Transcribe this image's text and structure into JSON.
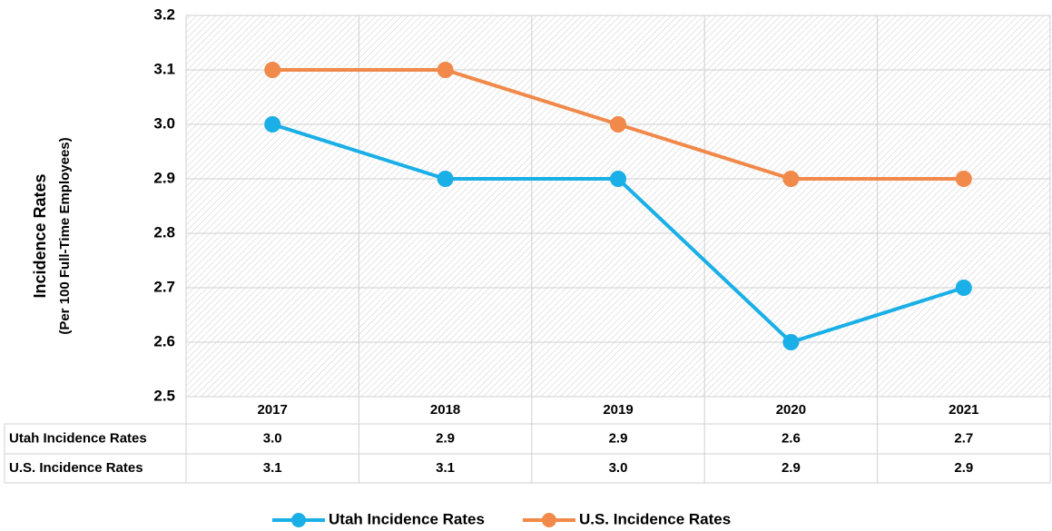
{
  "chart_data": {
    "type": "line",
    "y_label": [
      "Incidence Rates",
      "(Per 100 Full-Time Employees)"
    ],
    "categories": [
      "2017",
      "2018",
      "2019",
      "2020",
      "2021"
    ],
    "series": [
      {
        "name": "Utah Incidence Rates",
        "color": "#1aafe6",
        "values": [
          3.0,
          2.9,
          2.9,
          2.6,
          2.7
        ],
        "value_labels": [
          "3.0",
          "2.9",
          "2.9",
          "2.6",
          "2.7"
        ]
      },
      {
        "name": "U.S. Incidence Rates",
        "color": "#f0894a",
        "values": [
          3.1,
          3.1,
          3.0,
          2.9,
          2.9
        ],
        "value_labels": [
          "3.1",
          "3.1",
          "3.0",
          "2.9",
          "2.9"
        ]
      }
    ],
    "ylim": [
      2.5,
      3.2
    ],
    "yticks": [
      2.5,
      2.6,
      2.7,
      2.8,
      2.9,
      {
        "value": 3.0,
        "label": "3.0"
      },
      3.1,
      3.2
    ],
    "grid": true,
    "legend": "bottom"
  }
}
